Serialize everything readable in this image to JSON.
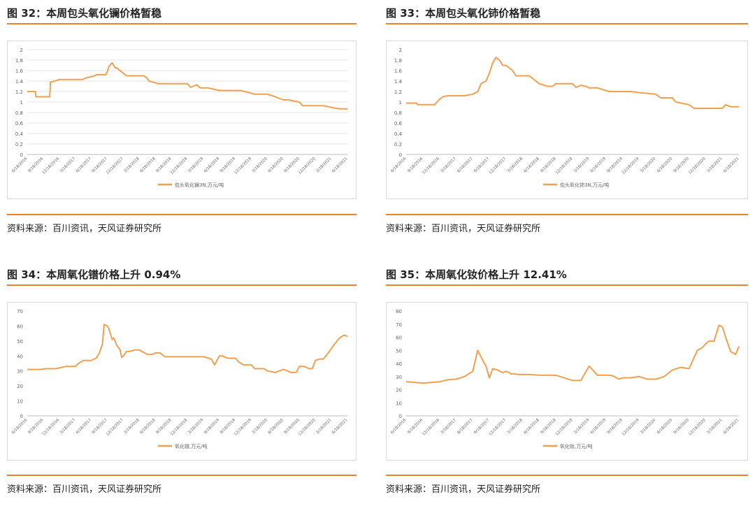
{
  "accent_color": "#e8832a",
  "line_color": "#f0a050",
  "source_text": "资料来源：百川资讯，天风证券研究所",
  "charts": [
    {
      "figure_title": "图 32：本周包头氧化镧价格暂稳",
      "chart_data": {
        "type": "line",
        "x_ticks": [
          "6/18/2016",
          "9/18/2016",
          "12/18/2016",
          "3/18/2017",
          "6/18/2017",
          "9/18/2017",
          "12/18/2017",
          "3/18/2018",
          "6/18/2018",
          "9/18/2018",
          "12/18/2018",
          "3/18/2019",
          "6/18/2019",
          "9/18/2019",
          "12/18/2019",
          "3/18/2020",
          "6/18/2020",
          "9/18/2020",
          "12/18/2020",
          "3/18/2021",
          "6/18/2021"
        ],
        "ylim": [
          0,
          2
        ],
        "y_ticks": [
          0,
          0.2,
          0.4,
          0.6,
          0.8,
          1,
          1.2,
          1.4,
          1.6,
          1.8,
          2
        ],
        "grid": true,
        "legend_position": "bottom",
        "series": [
          {
            "name": "包头氧化镧3N,万元/吨",
            "x": [
              0,
              0.5,
              0.55,
              1.4,
              1.45,
              1.7,
              2.0,
              3.5,
              3.55,
              3.8,
              4.2,
              4.3,
              4.9,
              5.0,
              5.1,
              5.3,
              5.5,
              5.6,
              6.0,
              6.2,
              6.3,
              7.3,
              7.5,
              7.6,
              8.2,
              8.4,
              8.5,
              8.7,
              10.0,
              10.2,
              10.6,
              10.8,
              11.0,
              11.3,
              12.0,
              12.2,
              13.3,
              13.6,
              14.2,
              14.3,
              15.0,
              15.5,
              16.0,
              16.3,
              17.0,
              17.2,
              18.3,
              18.5,
              19.3,
              19.5,
              20.0
            ],
            "y": [
              1.2,
              1.2,
              1.1,
              1.1,
              1.38,
              1.4,
              1.43,
              1.43,
              1.45,
              1.47,
              1.5,
              1.52,
              1.52,
              1.58,
              1.68,
              1.75,
              1.65,
              1.65,
              1.55,
              1.5,
              1.5,
              1.5,
              1.45,
              1.4,
              1.35,
              1.35,
              1.35,
              1.35,
              1.35,
              1.28,
              1.33,
              1.27,
              1.27,
              1.27,
              1.22,
              1.22,
              1.22,
              1.2,
              1.15,
              1.15,
              1.15,
              1.1,
              1.04,
              1.04,
              1.0,
              0.93,
              0.93,
              0.93,
              0.88,
              0.87,
              0.87
            ]
          }
        ]
      }
    },
    {
      "figure_title": "图 33：本周包头氧化铈价格暂稳",
      "chart_data": {
        "type": "line",
        "x_ticks": [
          "6/18/2016",
          "9/18/2016",
          "12/18/2016",
          "3/18/2017",
          "6/18/2017",
          "9/18/2017",
          "12/18/2017",
          "3/18/2018",
          "6/18/2018",
          "9/18/2018",
          "12/18/2018",
          "3/18/2019",
          "6/18/2019",
          "9/18/2019",
          "12/18/2019",
          "3/18/2020",
          "6/18/2020",
          "9/18/2020",
          "12/18/2020",
          "3/18/2021",
          "6/18/2021"
        ],
        "ylim": [
          0,
          2
        ],
        "y_ticks": [
          0,
          0.2,
          0.4,
          0.6,
          0.8,
          1,
          1.2,
          1.4,
          1.6,
          1.8,
          2
        ],
        "grid": false,
        "legend_position": "bottom",
        "series": [
          {
            "name": "包头氧化铈3N,万元/吨",
            "x": [
              0,
              0.6,
              0.7,
              1.7,
              2.0,
              2.2,
              2.5,
              3.5,
              4.0,
              4.3,
              4.5,
              4.8,
              5.0,
              5.2,
              5.4,
              5.6,
              5.8,
              6.0,
              6.4,
              6.6,
              6.8,
              7.4,
              7.6,
              8.0,
              8.5,
              8.8,
              9.0,
              9.5,
              10.0,
              10.2,
              10.5,
              10.8,
              11.0,
              11.5,
              12.0,
              12.2,
              13.0,
              13.5,
              14.0,
              15.0,
              15.3,
              16.0,
              16.2,
              17.0,
              17.3,
              18.0,
              19.0,
              19.2,
              19.5,
              20.0
            ],
            "y": [
              0.98,
              0.98,
              0.95,
              0.95,
              1.05,
              1.1,
              1.12,
              1.12,
              1.15,
              1.2,
              1.35,
              1.4,
              1.55,
              1.75,
              1.85,
              1.8,
              1.7,
              1.7,
              1.6,
              1.5,
              1.5,
              1.5,
              1.45,
              1.35,
              1.3,
              1.3,
              1.35,
              1.35,
              1.35,
              1.28,
              1.32,
              1.3,
              1.27,
              1.27,
              1.22,
              1.2,
              1.2,
              1.2,
              1.18,
              1.15,
              1.08,
              1.08,
              1.0,
              0.95,
              0.88,
              0.88,
              0.88,
              0.95,
              0.91,
              0.91
            ]
          }
        ]
      }
    },
    {
      "figure_title": "图 34：本周氧化镨价格上升 0.94%",
      "chart_data": {
        "type": "line",
        "x_ticks": [
          "6/18/2016",
          "9/18/2016",
          "12/18/2016",
          "3/18/2017",
          "6/18/2017",
          "9/18/2017",
          "12/18/2017",
          "3/18/2018",
          "6/18/2018",
          "9/18/2018",
          "12/18/2018",
          "3/18/2019",
          "6/18/2019",
          "9/18/2019",
          "12/18/2019",
          "3/18/2020",
          "6/18/2020",
          "9/18/2020",
          "12/18/2020",
          "3/18/2021",
          "6/18/2021"
        ],
        "ylim": [
          0,
          70
        ],
        "y_ticks": [
          0,
          10,
          20,
          30,
          40,
          50,
          60,
          70
        ],
        "grid": false,
        "legend_position": "bottom",
        "series": [
          {
            "name": "氧化镨,万元/吨",
            "x": [
              0,
              0.8,
              1.2,
              1.8,
              2.4,
              3.0,
              3.2,
              3.5,
              4.0,
              4.3,
              4.5,
              4.7,
              4.8,
              5.0,
              5.1,
              5.3,
              5.4,
              5.6,
              5.8,
              5.9,
              6.0,
              6.2,
              6.4,
              6.7,
              7.0,
              7.5,
              7.8,
              8.0,
              8.3,
              8.6,
              9.0,
              9.5,
              10.0,
              10.5,
              11.0,
              11.5,
              11.7,
              12.0,
              12.2,
              12.5,
              13.0,
              13.2,
              13.5,
              14.0,
              14.2,
              14.8,
              15.0,
              15.5,
              16.0,
              16.5,
              16.8,
              17.0,
              17.3,
              17.6,
              17.8,
              18.0,
              18.3,
              18.5,
              18.8,
              19.2,
              19.5,
              19.8,
              20.0
            ],
            "y": [
              31,
              31,
              31.5,
              31.5,
              33,
              33,
              35,
              37,
              37,
              38.5,
              42,
              48,
              61,
              60,
              58,
              51,
              52,
              47,
              44,
              39,
              40,
              43,
              43,
              44,
              44,
              41,
              41,
              42,
              42,
              39.5,
              39.5,
              39.5,
              39.5,
              39.5,
              39.5,
              38,
              34,
              40,
              40,
              38.5,
              38.5,
              36,
              34,
              34,
              31.5,
              31.5,
              30,
              29,
              31,
              29,
              29,
              33,
              33,
              31.5,
              31.5,
              37,
              38,
              38,
              42,
              48,
              52,
              54,
              53
            ]
          }
        ]
      }
    },
    {
      "figure_title": "图 35：本周氧化钕价格上升 12.41%",
      "chart_data": {
        "type": "line",
        "x_ticks": [
          "6/18/2016",
          "9/18/2016",
          "12/18/2016",
          "3/18/2017",
          "6/18/2017",
          "9/18/2017",
          "12/18/2017",
          "3/18/2018",
          "6/18/2018",
          "9/18/2018",
          "12/18/2018",
          "3/18/2019",
          "6/18/2019",
          "9/18/2019",
          "12/18/2019",
          "3/18/2020",
          "6/18/2020",
          "9/18/2020",
          "12/18/2020",
          "3/18/2021",
          "6/18/2021"
        ],
        "ylim": [
          0,
          80
        ],
        "y_ticks": [
          0,
          10,
          20,
          30,
          40,
          50,
          60,
          70,
          80
        ],
        "grid": false,
        "legend_position": "bottom",
        "series": [
          {
            "name": "氧化钕,万元/吨",
            "x": [
              0,
              1.0,
              1.5,
              2.0,
              2.5,
              3.0,
              3.5,
              4.0,
              4.3,
              4.5,
              4.7,
              4.8,
              5.0,
              5.2,
              5.5,
              5.8,
              6.0,
              6.2,
              6.3,
              6.5,
              6.8,
              7.0,
              7.5,
              8.0,
              8.5,
              9.0,
              10.0,
              10.5,
              11.0,
              11.5,
              12.0,
              12.3,
              12.5,
              12.8,
              13.0,
              13.5,
              14.0,
              14.5,
              15.0,
              15.5,
              16.0,
              16.5,
              17.0,
              17.5,
              17.8,
              18.0,
              18.2,
              18.5,
              18.8,
              19.0,
              19.2,
              19.5,
              19.8,
              20.0
            ],
            "y": [
              26,
              25,
              25.5,
              26,
              27.5,
              28,
              30,
              34,
              50,
              45,
              40,
              38,
              29,
              36,
              35,
              33,
              34,
              33,
              32,
              32,
              31.5,
              31.5,
              31.5,
              31,
              31,
              31,
              27,
              27,
              38,
              31,
              31,
              31,
              30,
              28,
              29,
              29,
              30,
              28,
              28,
              30,
              35,
              37,
              36,
              50,
              52,
              55,
              57,
              57,
              69,
              68,
              60,
              49,
              47,
              53
            ]
          }
        ]
      }
    }
  ]
}
